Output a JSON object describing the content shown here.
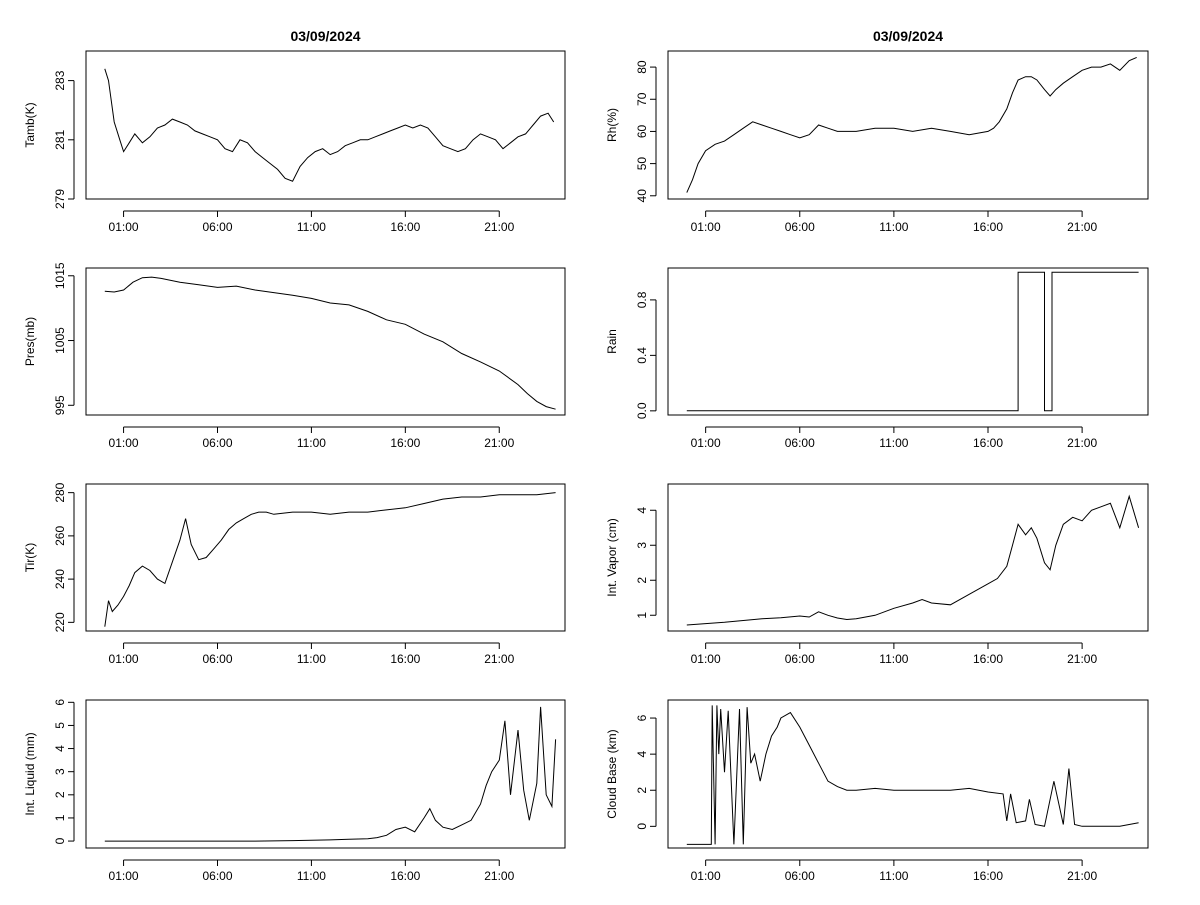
{
  "titles": [
    "03/09/2024",
    "03/09/2024"
  ],
  "x_tick_labels": [
    "01:00",
    "06:00",
    "11:00",
    "16:00",
    "21:00"
  ],
  "chart_data": [
    {
      "type": "line",
      "ylabel": "Tamb(K)",
      "xlim": [
        -1,
        24.5
      ],
      "ylim": [
        279,
        284
      ],
      "y_ticks": [
        279,
        281,
        283
      ],
      "x": [
        0,
        0.2,
        0.5,
        0.8,
        1,
        1.3,
        1.6,
        2,
        2.4,
        2.8,
        3.2,
        3.6,
        4,
        4.4,
        4.8,
        5.2,
        5.6,
        6,
        6.4,
        6.8,
        7.2,
        7.6,
        8,
        8.4,
        8.8,
        9.2,
        9.6,
        10,
        10.4,
        10.8,
        11.2,
        11.6,
        12,
        12.4,
        12.8,
        13.2,
        13.6,
        14,
        14.4,
        14.8,
        15.2,
        15.6,
        16,
        16.4,
        16.8,
        17.2,
        17.6,
        18,
        18.4,
        18.8,
        19.2,
        19.6,
        20,
        20.4,
        20.8,
        21.2,
        21.6,
        22,
        22.4,
        22.8,
        23.2,
        23.6,
        23.9
      ],
      "y": [
        283.4,
        283,
        281.6,
        281,
        280.6,
        280.9,
        281.2,
        280.9,
        281.1,
        281.4,
        281.5,
        281.7,
        281.6,
        281.5,
        281.3,
        281.2,
        281.1,
        281,
        280.7,
        280.6,
        281,
        280.9,
        280.6,
        280.4,
        280.2,
        280,
        279.7,
        279.6,
        280.1,
        280.4,
        280.6,
        280.7,
        280.5,
        280.6,
        280.8,
        280.9,
        281,
        281,
        281.1,
        281.2,
        281.3,
        281.4,
        281.5,
        281.4,
        281.5,
        281.4,
        281.1,
        280.8,
        280.7,
        280.6,
        280.7,
        281,
        281.2,
        281.1,
        281,
        280.7,
        280.9,
        281.1,
        281.2,
        281.5,
        281.8,
        281.9,
        281.6
      ]
    },
    {
      "type": "line",
      "ylabel": "Rh(%)",
      "xlim": [
        -1,
        24.5
      ],
      "ylim": [
        39,
        85
      ],
      "y_ticks": [
        40,
        50,
        60,
        70,
        80
      ],
      "x": [
        0,
        0.3,
        0.6,
        1,
        1.5,
        2,
        2.5,
        3,
        3.5,
        4,
        4.5,
        5,
        5.5,
        6,
        6.5,
        7,
        7.5,
        8,
        9,
        10,
        11,
        12,
        13,
        14,
        15,
        16,
        16.3,
        16.6,
        17,
        17.3,
        17.6,
        18,
        18.3,
        18.6,
        19,
        19.3,
        19.6,
        20,
        20.5,
        21,
        21.5,
        22,
        22.5,
        23,
        23.5,
        23.9
      ],
      "y": [
        41,
        45,
        50,
        54,
        56,
        57,
        59,
        61,
        63,
        62,
        61,
        60,
        59,
        58,
        59,
        62,
        61,
        60,
        60,
        61,
        61,
        60,
        61,
        60,
        59,
        60,
        61,
        63,
        67,
        72,
        76,
        77,
        77,
        76,
        73,
        71,
        73,
        75,
        77,
        79,
        80,
        80,
        81,
        79,
        82,
        83
      ]
    },
    {
      "type": "line",
      "ylabel": "Pres(mb)",
      "xlim": [
        -1,
        24.5
      ],
      "ylim": [
        993.5,
        1016.2
      ],
      "y_ticks": [
        995,
        1005,
        1015
      ],
      "x": [
        0,
        0.5,
        1,
        1.5,
        2,
        2.5,
        3,
        4,
        5,
        6,
        7,
        8,
        9,
        10,
        11,
        12,
        13,
        14,
        15,
        16,
        17,
        18,
        19,
        20,
        21,
        22,
        22.5,
        23,
        23.5,
        24
      ],
      "y": [
        1012.6,
        1012.5,
        1012.8,
        1014,
        1014.7,
        1014.8,
        1014.6,
        1014,
        1013.6,
        1013.2,
        1013.4,
        1012.8,
        1012.4,
        1012,
        1011.5,
        1010.8,
        1010.5,
        1009.5,
        1008.2,
        1007.5,
        1006,
        1004.8,
        1003,
        1001.7,
        1000.3,
        998.2,
        996.8,
        995.6,
        994.8,
        994.4
      ]
    },
    {
      "type": "line",
      "ylabel": "Rain",
      "xlim": [
        -1,
        24.5
      ],
      "ylim": [
        -0.03,
        1.03
      ],
      "y_ticks": [
        0.0,
        0.4,
        0.8
      ],
      "y_tick_labels": [
        "0.0",
        "0.4",
        "0.8"
      ],
      "x": [
        0,
        17.6,
        17.6,
        19,
        19,
        19.4,
        19.4,
        24
      ],
      "y": [
        0,
        0,
        1,
        1,
        0,
        0,
        1,
        1
      ]
    },
    {
      "type": "line",
      "ylabel": "Tir(K)",
      "xlim": [
        -1,
        24.5
      ],
      "ylim": [
        216,
        284
      ],
      "y_ticks": [
        220,
        240,
        260,
        280
      ],
      "x": [
        0,
        0.2,
        0.4,
        0.7,
        1,
        1.3,
        1.6,
        2,
        2.4,
        2.8,
        3.2,
        3.6,
        4,
        4.3,
        4.6,
        5,
        5.4,
        5.8,
        6.2,
        6.6,
        7,
        7.4,
        7.8,
        8.2,
        8.6,
        9,
        10,
        11,
        12,
        13,
        14,
        15,
        16,
        17,
        18,
        19,
        20,
        21,
        22,
        23,
        24
      ],
      "y": [
        218,
        230,
        225,
        228,
        232,
        237,
        243,
        246,
        244,
        240,
        238,
        248,
        258,
        268,
        256,
        249,
        250,
        254,
        258,
        263,
        266,
        268,
        270,
        271,
        271,
        270,
        271,
        271,
        270,
        271,
        271,
        272,
        273,
        275,
        277,
        278,
        278,
        279,
        279,
        279,
        280
      ]
    },
    {
      "type": "line",
      "ylabel": "Int. Vapor (cm)",
      "xlim": [
        -1,
        24.5
      ],
      "ylim": [
        0.55,
        4.75
      ],
      "y_ticks": [
        1,
        2,
        3,
        4
      ],
      "x": [
        0,
        1,
        2,
        3,
        4,
        5,
        6,
        6.5,
        7,
        7.5,
        8,
        8.5,
        9,
        10,
        11,
        12,
        12.5,
        13,
        14,
        15,
        16,
        16.5,
        17,
        17.3,
        17.6,
        18,
        18.3,
        18.6,
        19,
        19.3,
        19.6,
        20,
        20.5,
        21,
        21.5,
        22,
        22.5,
        23,
        23.5,
        24
      ],
      "y": [
        0.72,
        0.76,
        0.8,
        0.85,
        0.9,
        0.93,
        0.98,
        0.95,
        1.1,
        1,
        0.92,
        0.88,
        0.9,
        1.0,
        1.2,
        1.35,
        1.45,
        1.35,
        1.3,
        1.6,
        1.9,
        2.05,
        2.4,
        3.0,
        3.6,
        3.3,
        3.5,
        3.2,
        2.5,
        2.3,
        3.0,
        3.6,
        3.8,
        3.7,
        4.0,
        4.1,
        4.2,
        3.5,
        4.4,
        3.5
      ]
    },
    {
      "type": "line",
      "ylabel": "Int. Liquid (mm)",
      "xlim": [
        -1,
        24.5
      ],
      "ylim": [
        -0.3,
        6.1
      ],
      "y_ticks": [
        0,
        1,
        2,
        3,
        4,
        5,
        6
      ],
      "x": [
        0,
        2,
        4,
        6,
        8,
        10,
        12,
        13,
        14,
        14.5,
        15,
        15.5,
        16,
        16.5,
        17,
        17.3,
        17.6,
        18,
        18.5,
        19,
        19.5,
        20,
        20.3,
        20.6,
        21,
        21.3,
        21.6,
        22,
        22.3,
        22.6,
        23,
        23.2,
        23.5,
        23.8,
        24
      ],
      "y": [
        0,
        0,
        0,
        0,
        0,
        0.02,
        0.05,
        0.08,
        0.1,
        0.15,
        0.25,
        0.5,
        0.6,
        0.4,
        1.0,
        1.4,
        0.9,
        0.6,
        0.5,
        0.7,
        0.9,
        1.6,
        2.4,
        3.0,
        3.5,
        5.2,
        2.0,
        4.8,
        2.2,
        0.9,
        2.5,
        5.8,
        2.0,
        1.5,
        4.4
      ]
    },
    {
      "type": "line",
      "ylabel": "Cloud Base (km)",
      "xlim": [
        -1,
        24.5
      ],
      "ylim": [
        -1.2,
        7.0
      ],
      "y_ticks": [
        0,
        2,
        4,
        6
      ],
      "x": [
        0,
        1.3,
        1.35,
        1.5,
        1.6,
        1.7,
        1.8,
        2,
        2.2,
        2.5,
        2.8,
        3,
        3.2,
        3.4,
        3.6,
        3.9,
        4.2,
        4.5,
        4.8,
        5,
        5.5,
        6,
        6.5,
        7,
        7.5,
        8,
        8.5,
        9,
        10,
        11,
        12,
        13,
        14,
        15,
        16,
        16.8,
        17,
        17.2,
        17.5,
        18,
        18.2,
        18.5,
        19,
        19.5,
        20,
        20.3,
        20.6,
        21,
        21.5,
        22,
        22.5,
        23,
        23.5,
        24
      ],
      "y": [
        -1,
        -1,
        6.7,
        -1,
        6.7,
        4,
        6.5,
        3,
        6.4,
        -1,
        6.5,
        -1,
        6.6,
        3.5,
        4,
        2.5,
        4,
        5,
        5.5,
        6,
        6.3,
        5.5,
        4.5,
        3.5,
        2.5,
        2.2,
        2,
        2,
        2.1,
        2,
        2,
        2,
        2,
        2.1,
        1.9,
        1.8,
        0.3,
        1.8,
        0.2,
        0.3,
        1.5,
        0.1,
        0,
        2.5,
        0.1,
        3.2,
        0.1,
        0,
        0,
        0,
        0,
        0,
        0.1,
        0.2
      ]
    }
  ]
}
